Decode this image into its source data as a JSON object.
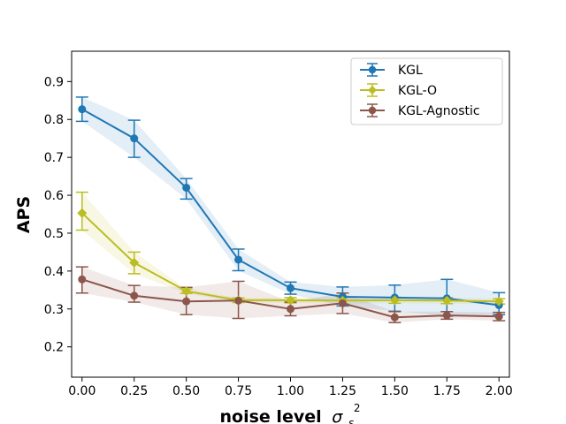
{
  "chart_data": {
    "type": "line",
    "title": "",
    "xlabel": "noise level",
    "xlabel_symbol": "σ",
    "xlabel_sub": "s",
    "xlabel_sup": "2",
    "ylabel": "APS",
    "x": [
      0.0,
      0.25,
      0.5,
      0.75,
      1.0,
      1.25,
      1.5,
      1.75,
      2.0
    ],
    "xlim": [
      -0.05,
      2.05
    ],
    "ylim": [
      0.12,
      0.98
    ],
    "xticks": [
      0.0,
      0.25,
      0.5,
      0.75,
      1.0,
      1.25,
      1.5,
      1.75,
      2.0
    ],
    "xtick_labels": [
      "0.00",
      "0.25",
      "0.50",
      "0.75",
      "1.00",
      "1.25",
      "1.50",
      "1.75",
      "2.00"
    ],
    "yticks": [
      0.2,
      0.3,
      0.4,
      0.5,
      0.6,
      0.7,
      0.8,
      0.9
    ],
    "ytick_labels": [
      "0.2",
      "0.3",
      "0.4",
      "0.5",
      "0.6",
      "0.7",
      "0.8",
      "0.9"
    ],
    "legend_position": "upper-right",
    "series": [
      {
        "name": "KGL",
        "color": "#1f77b4",
        "marker": "circle",
        "values": [
          0.827,
          0.75,
          0.62,
          0.43,
          0.355,
          0.332,
          0.33,
          0.328,
          0.31
        ],
        "err_low": [
          0.795,
          0.7,
          0.59,
          0.401,
          0.339,
          0.308,
          0.294,
          0.281,
          0.285
        ],
        "err_high": [
          0.859,
          0.798,
          0.644,
          0.458,
          0.371,
          0.358,
          0.363,
          0.378,
          0.343
        ]
      },
      {
        "name": "KGL-O",
        "color": "#bcbd22",
        "marker": "diamond",
        "values": [
          0.553,
          0.422,
          0.347,
          0.323,
          0.323,
          0.322,
          0.323,
          0.322,
          0.32
        ],
        "err_low": [
          0.508,
          0.393,
          0.341,
          0.317,
          0.316,
          0.314,
          0.315,
          0.314,
          0.313
        ],
        "err_high": [
          0.608,
          0.45,
          0.353,
          0.329,
          0.33,
          0.33,
          0.331,
          0.33,
          0.327
        ]
      },
      {
        "name": "KGL-Agnostic",
        "color": "#8c564b",
        "marker": "circle",
        "values": [
          0.378,
          0.335,
          0.32,
          0.322,
          0.3,
          0.315,
          0.278,
          0.283,
          0.28
        ],
        "err_low": [
          0.342,
          0.318,
          0.285,
          0.275,
          0.282,
          0.288,
          0.264,
          0.273,
          0.269
        ],
        "err_high": [
          0.411,
          0.362,
          0.357,
          0.373,
          0.318,
          0.342,
          0.293,
          0.293,
          0.291
        ]
      }
    ]
  }
}
